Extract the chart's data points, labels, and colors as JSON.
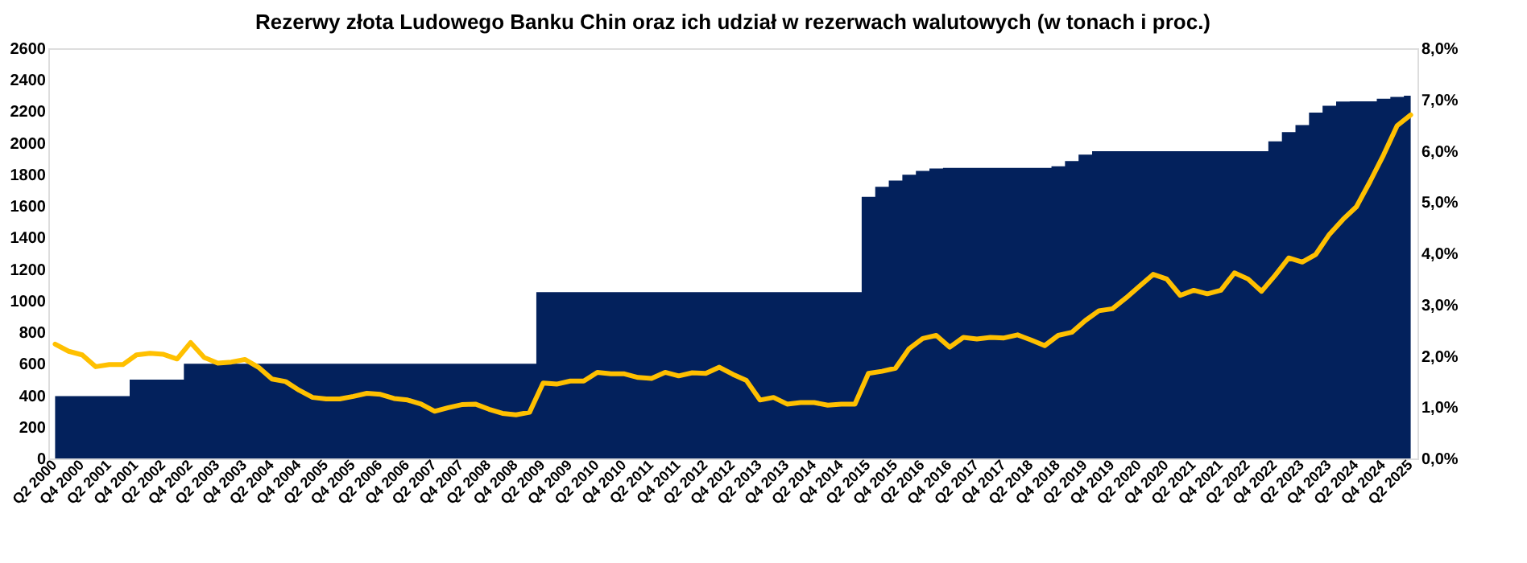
{
  "chart_data": {
    "type": "area",
    "title": "Rezerwy złota Ludowego Banku Chin oraz ich udział w rezerwach walutowych (w tonach i proc.)",
    "categories": [
      "Q2 2000",
      null,
      "Q4 2000",
      null,
      "Q2 2001",
      null,
      "Q4 2001",
      null,
      "Q2 2002",
      null,
      "Q4 2002",
      null,
      "Q2 2003",
      null,
      "Q4 2003",
      null,
      "Q2 2004",
      null,
      "Q4 2004",
      null,
      "Q2 2005",
      null,
      "Q4 2005",
      null,
      "Q2 2006",
      null,
      "Q4 2006",
      null,
      "Q2 2007",
      null,
      "Q4 2007",
      null,
      "Q2 2008",
      null,
      "Q4 2008",
      null,
      "Q2 2009",
      null,
      "Q4 2009",
      null,
      "Q2 2010",
      null,
      "Q4 2010",
      null,
      "Q2 2011",
      null,
      "Q4 2011",
      null,
      "Q2 2012",
      null,
      "Q4 2012",
      null,
      "Q2 2013",
      null,
      "Q4 2013",
      null,
      "Q2 2014",
      null,
      "Q4 2014",
      null,
      "Q2 2015",
      null,
      "Q4 2015",
      null,
      "Q2 2016",
      null,
      "Q4 2016",
      null,
      "Q2 2017",
      null,
      "Q4 2017",
      null,
      "Q2 2018",
      null,
      "Q4 2018",
      null,
      "Q2 2019",
      null,
      "Q4 2019",
      null,
      "Q2 2020",
      null,
      "Q4 2020",
      null,
      "Q2 2021",
      null,
      "Q4 2021",
      null,
      "Q2 2022",
      null,
      "Q4 2022",
      null,
      "Q2 2023",
      null,
      "Q4 2023",
      null,
      "Q2 2024",
      null,
      "Q4 2024",
      null,
      "Q2 2025"
    ],
    "series": [
      {
        "color": "#03215c",
        "values": [
          395,
          395,
          395,
          395,
          395,
          395,
          500,
          500,
          500,
          500,
          600,
          600,
          600,
          600,
          600,
          600,
          600,
          600,
          600,
          600,
          600,
          600,
          600,
          600,
          600,
          600,
          600,
          600,
          600,
          600,
          600,
          600,
          600,
          600,
          600,
          600,
          1054,
          1054,
          1054,
          1054,
          1054,
          1054,
          1054,
          1054,
          1054,
          1054,
          1054,
          1054,
          1054,
          1054,
          1054,
          1054,
          1054,
          1054,
          1054,
          1054,
          1054,
          1054,
          1054,
          1054,
          1658,
          1722,
          1762,
          1798,
          1823,
          1838,
          1842,
          1842,
          1842,
          1842,
          1842,
          1842,
          1842,
          1842,
          1852,
          1885,
          1926,
          1948,
          1948,
          1948,
          1948,
          1948,
          1948,
          1948,
          1948,
          1948,
          1948,
          1948,
          1948,
          1948,
          2010,
          2068,
          2113,
          2192,
          2235,
          2262,
          2264,
          2264,
          2280,
          2292,
          2299
        ]
      },
      {
        "type": "line",
        "axis": "y2",
        "color": "#ffc000",
        "values": [
          2.23,
          2.09,
          2.02,
          1.79,
          1.83,
          1.83,
          2.02,
          2.05,
          2.03,
          1.94,
          2.26,
          1.97,
          1.86,
          1.88,
          1.93,
          1.78,
          1.55,
          1.5,
          1.33,
          1.19,
          1.16,
          1.16,
          1.21,
          1.27,
          1.25,
          1.17,
          1.14,
          1.06,
          0.92,
          0.99,
          1.05,
          1.06,
          0.96,
          0.88,
          0.85,
          0.9,
          1.47,
          1.45,
          1.51,
          1.51,
          1.68,
          1.65,
          1.65,
          1.58,
          1.56,
          1.68,
          1.61,
          1.67,
          1.66,
          1.78,
          1.64,
          1.52,
          1.14,
          1.19,
          1.06,
          1.09,
          1.09,
          1.04,
          1.06,
          1.06,
          1.66,
          1.7,
          1.76,
          2.14,
          2.34,
          2.4,
          2.17,
          2.36,
          2.33,
          2.36,
          2.35,
          2.41,
          2.31,
          2.2,
          2.4,
          2.46,
          2.69,
          2.88,
          2.92,
          3.13,
          3.36,
          3.59,
          3.5,
          3.18,
          3.28,
          3.21,
          3.28,
          3.62,
          3.5,
          3.26,
          3.57,
          3.91,
          3.83,
          3.98,
          4.37,
          4.66,
          4.91,
          5.4,
          5.92,
          6.49,
          6.7
        ]
      }
    ],
    "ylim": [
      0,
      2600
    ],
    "yticks": [
      0,
      200,
      400,
      600,
      800,
      1000,
      1200,
      1400,
      1600,
      1800,
      2000,
      2200,
      2400,
      2600
    ],
    "y2lim": [
      0,
      8
    ],
    "y2ticks": [
      {
        "value": 0,
        "label": "0,0%"
      },
      {
        "value": 1,
        "label": "1,0%"
      },
      {
        "value": 2,
        "label": "2,0%"
      },
      {
        "value": 3,
        "label": "3,0%"
      },
      {
        "value": 4,
        "label": "4,0%"
      },
      {
        "value": 5,
        "label": "5,0%"
      },
      {
        "value": 6,
        "label": "6,0%"
      },
      {
        "value": 7,
        "label": "7,0%"
      },
      {
        "value": 8,
        "label": "8,0%"
      }
    ],
    "grid": false
  }
}
